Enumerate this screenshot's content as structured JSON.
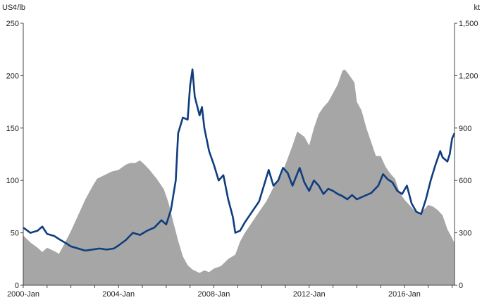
{
  "chart_data": {
    "type": "line",
    "left_axis": {
      "unit": "US¢/lb",
      "ticks": [
        "0",
        "50",
        "100",
        "150",
        "200",
        "250"
      ],
      "ylim": [
        0,
        250
      ]
    },
    "right_axis": {
      "unit": "kt",
      "ticks": [
        "0",
        "300",
        "600",
        "900",
        "1,200",
        "1,500"
      ],
      "ylim": [
        0,
        1500
      ]
    },
    "x_axis": {
      "ticks": [
        "2000-Jan",
        "2004-Jan",
        "2008-Jan",
        "2012-Jan",
        "2016-Jan"
      ],
      "xlim": [
        2000.0,
        2018.1
      ]
    },
    "grid": false,
    "series": [
      {
        "kind": "area",
        "axis": "right",
        "color": "#a6a6a6",
        "points": [
          [
            2000.0,
            285
          ],
          [
            2000.3,
            245
          ],
          [
            2000.6,
            215
          ],
          [
            2000.8,
            190
          ],
          [
            2001.0,
            215
          ],
          [
            2001.3,
            195
          ],
          [
            2001.5,
            180
          ],
          [
            2001.7,
            230
          ],
          [
            2002.0,
            310
          ],
          [
            2002.3,
            400
          ],
          [
            2002.6,
            490
          ],
          [
            2002.9,
            565
          ],
          [
            2003.1,
            610
          ],
          [
            2003.4,
            630
          ],
          [
            2003.7,
            650
          ],
          [
            2004.0,
            660
          ],
          [
            2004.3,
            690
          ],
          [
            2004.5,
            700
          ],
          [
            2004.7,
            700
          ],
          [
            2004.9,
            715
          ],
          [
            2005.1,
            690
          ],
          [
            2005.3,
            660
          ],
          [
            2005.6,
            610
          ],
          [
            2005.9,
            550
          ],
          [
            2006.1,
            470
          ],
          [
            2006.3,
            360
          ],
          [
            2006.5,
            255
          ],
          [
            2006.7,
            165
          ],
          [
            2006.9,
            115
          ],
          [
            2007.1,
            90
          ],
          [
            2007.4,
            70
          ],
          [
            2007.6,
            85
          ],
          [
            2007.8,
            75
          ],
          [
            2008.0,
            95
          ],
          [
            2008.3,
            110
          ],
          [
            2008.6,
            150
          ],
          [
            2008.9,
            175
          ],
          [
            2009.1,
            250
          ],
          [
            2009.3,
            300
          ],
          [
            2009.6,
            360
          ],
          [
            2009.9,
            420
          ],
          [
            2010.2,
            480
          ],
          [
            2010.5,
            560
          ],
          [
            2010.8,
            620
          ],
          [
            2011.0,
            690
          ],
          [
            2011.3,
            800
          ],
          [
            2011.5,
            880
          ],
          [
            2011.8,
            850
          ],
          [
            2012.0,
            800
          ],
          [
            2012.2,
            900
          ],
          [
            2012.4,
            980
          ],
          [
            2012.6,
            1020
          ],
          [
            2012.8,
            1050
          ],
          [
            2013.0,
            1100
          ],
          [
            2013.2,
            1150
          ],
          [
            2013.4,
            1230
          ],
          [
            2013.5,
            1235
          ],
          [
            2013.7,
            1200
          ],
          [
            2013.9,
            1160
          ],
          [
            2014.0,
            1050
          ],
          [
            2014.2,
            1000
          ],
          [
            2014.4,
            900
          ],
          [
            2014.6,
            820
          ],
          [
            2014.8,
            740
          ],
          [
            2015.0,
            740
          ],
          [
            2015.2,
            680
          ],
          [
            2015.4,
            640
          ],
          [
            2015.6,
            610
          ],
          [
            2015.8,
            530
          ],
          [
            2016.0,
            490
          ],
          [
            2016.2,
            460
          ],
          [
            2016.4,
            430
          ],
          [
            2016.6,
            410
          ],
          [
            2016.8,
            430
          ],
          [
            2017.0,
            460
          ],
          [
            2017.2,
            450
          ],
          [
            2017.4,
            430
          ],
          [
            2017.6,
            400
          ],
          [
            2017.8,
            320
          ],
          [
            2018.0,
            270
          ],
          [
            2018.1,
            240
          ]
        ]
      },
      {
        "kind": "line",
        "axis": "left",
        "color": "#0f3d7e",
        "points": [
          [
            2000.0,
            55
          ],
          [
            2000.3,
            50
          ],
          [
            2000.6,
            52
          ],
          [
            2000.8,
            56
          ],
          [
            2001.0,
            49
          ],
          [
            2001.3,
            47
          ],
          [
            2001.5,
            44
          ],
          [
            2001.8,
            40
          ],
          [
            2002.0,
            37
          ],
          [
            2002.3,
            35
          ],
          [
            2002.6,
            33
          ],
          [
            2002.9,
            34
          ],
          [
            2003.2,
            35
          ],
          [
            2003.5,
            34
          ],
          [
            2003.8,
            35
          ],
          [
            2004.0,
            38
          ],
          [
            2004.3,
            43
          ],
          [
            2004.6,
            50
          ],
          [
            2004.9,
            48
          ],
          [
            2005.2,
            52
          ],
          [
            2005.5,
            55
          ],
          [
            2005.8,
            62
          ],
          [
            2006.0,
            58
          ],
          [
            2006.2,
            72
          ],
          [
            2006.4,
            100
          ],
          [
            2006.5,
            145
          ],
          [
            2006.7,
            160
          ],
          [
            2006.9,
            158
          ],
          [
            2007.0,
            190
          ],
          [
            2007.1,
            206
          ],
          [
            2007.2,
            180
          ],
          [
            2007.4,
            162
          ],
          [
            2007.5,
            170
          ],
          [
            2007.6,
            150
          ],
          [
            2007.8,
            128
          ],
          [
            2008.0,
            115
          ],
          [
            2008.2,
            100
          ],
          [
            2008.4,
            105
          ],
          [
            2008.6,
            82
          ],
          [
            2008.8,
            65
          ],
          [
            2008.9,
            50
          ],
          [
            2009.1,
            52
          ],
          [
            2009.3,
            60
          ],
          [
            2009.6,
            70
          ],
          [
            2009.9,
            80
          ],
          [
            2010.1,
            95
          ],
          [
            2010.3,
            110
          ],
          [
            2010.5,
            95
          ],
          [
            2010.7,
            100
          ],
          [
            2010.9,
            112
          ],
          [
            2011.1,
            107
          ],
          [
            2011.3,
            95
          ],
          [
            2011.6,
            112
          ],
          [
            2011.8,
            98
          ],
          [
            2012.0,
            90
          ],
          [
            2012.2,
            100
          ],
          [
            2012.4,
            95
          ],
          [
            2012.6,
            87
          ],
          [
            2012.8,
            92
          ],
          [
            2013.0,
            90
          ],
          [
            2013.2,
            87
          ],
          [
            2013.4,
            85
          ],
          [
            2013.6,
            82
          ],
          [
            2013.8,
            86
          ],
          [
            2014.0,
            82
          ],
          [
            2014.3,
            85
          ],
          [
            2014.6,
            88
          ],
          [
            2014.9,
            95
          ],
          [
            2015.1,
            106
          ],
          [
            2015.3,
            101
          ],
          [
            2015.5,
            98
          ],
          [
            2015.7,
            90
          ],
          [
            2015.9,
            87
          ],
          [
            2016.1,
            95
          ],
          [
            2016.3,
            78
          ],
          [
            2016.5,
            70
          ],
          [
            2016.7,
            68
          ],
          [
            2016.9,
            82
          ],
          [
            2017.1,
            100
          ],
          [
            2017.3,
            115
          ],
          [
            2017.5,
            128
          ],
          [
            2017.6,
            122
          ],
          [
            2017.8,
            118
          ],
          [
            2017.9,
            125
          ],
          [
            2018.0,
            140
          ],
          [
            2018.1,
            145
          ]
        ]
      }
    ]
  }
}
